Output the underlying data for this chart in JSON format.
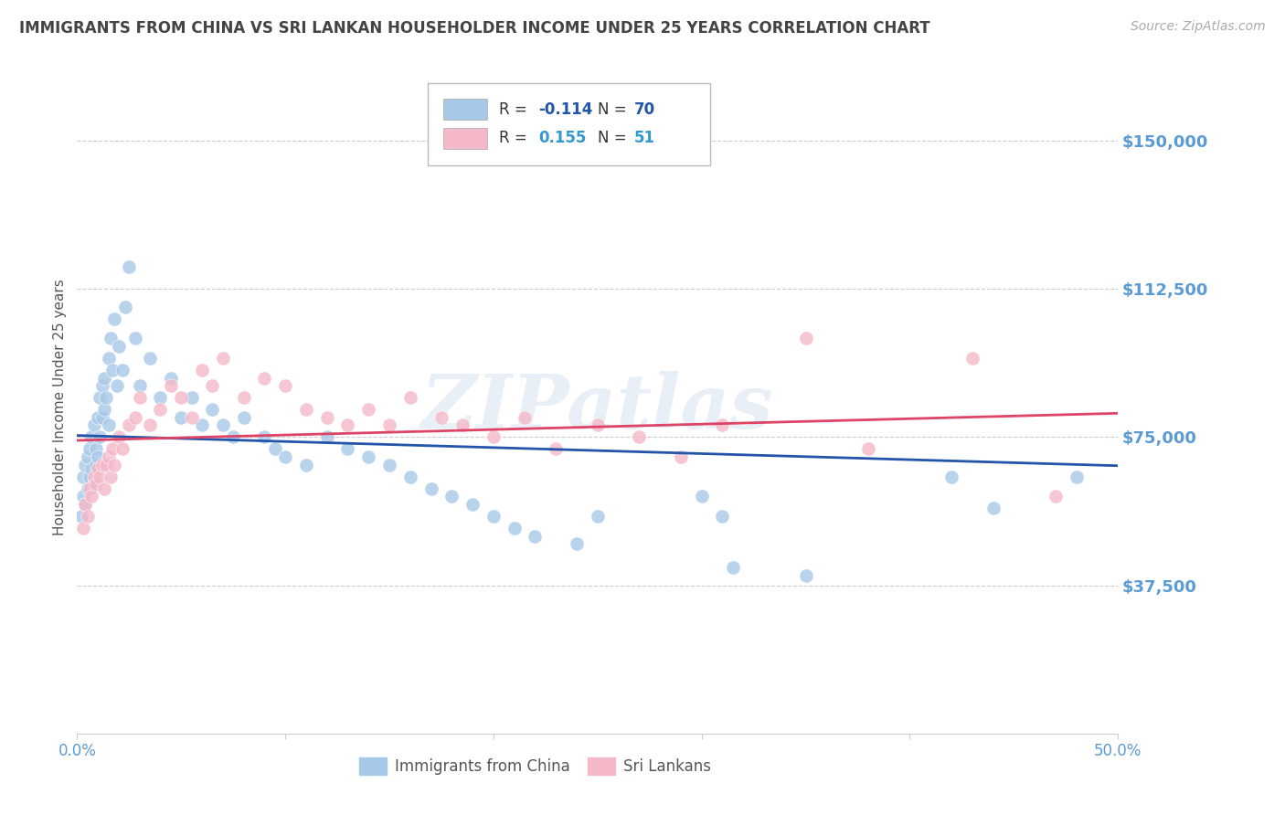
{
  "title": "IMMIGRANTS FROM CHINA VS SRI LANKAN HOUSEHOLDER INCOME UNDER 25 YEARS CORRELATION CHART",
  "source": "Source: ZipAtlas.com",
  "ylabel": "Householder Income Under 25 years",
  "xlim": [
    0.0,
    0.5
  ],
  "ylim": [
    0,
    165000
  ],
  "yticks": [
    37500,
    75000,
    112500,
    150000
  ],
  "ytick_labels": [
    "$37,500",
    "$75,000",
    "$112,500",
    "$150,000"
  ],
  "xticks": [
    0.0,
    0.1,
    0.2,
    0.3,
    0.4,
    0.5
  ],
  "xtick_labels": [
    "0.0%",
    "",
    "",
    "",
    "",
    "50.0%"
  ],
  "china_color": "#a8c8e8",
  "srilanka_color": "#f4b8c8",
  "china_line_color": "#2255aa",
  "srilanka_line_color": "#dd4466",
  "china_R": -0.114,
  "china_N": 70,
  "srilanka_R": 0.155,
  "srilanka_N": 51,
  "background_color": "#ffffff",
  "grid_color": "#cccccc",
  "title_color": "#444444",
  "tick_label_color": "#5b9bd5",
  "china_x": [
    0.002,
    0.003,
    0.003,
    0.004,
    0.004,
    0.005,
    0.005,
    0.006,
    0.006,
    0.007,
    0.007,
    0.008,
    0.008,
    0.009,
    0.009,
    0.01,
    0.01,
    0.011,
    0.011,
    0.012,
    0.012,
    0.013,
    0.013,
    0.014,
    0.015,
    0.015,
    0.016,
    0.017,
    0.018,
    0.019,
    0.02,
    0.022,
    0.023,
    0.025,
    0.028,
    0.03,
    0.035,
    0.04,
    0.045,
    0.05,
    0.055,
    0.06,
    0.065,
    0.07,
    0.075,
    0.08,
    0.09,
    0.095,
    0.1,
    0.11,
    0.12,
    0.13,
    0.14,
    0.15,
    0.16,
    0.17,
    0.18,
    0.19,
    0.2,
    0.21,
    0.22,
    0.24,
    0.25,
    0.3,
    0.31,
    0.315,
    0.35,
    0.42,
    0.44,
    0.48
  ],
  "china_y": [
    55000,
    60000,
    65000,
    58000,
    68000,
    62000,
    70000,
    65000,
    72000,
    67000,
    75000,
    63000,
    78000,
    68000,
    72000,
    80000,
    70000,
    85000,
    75000,
    80000,
    88000,
    82000,
    90000,
    85000,
    95000,
    78000,
    100000,
    92000,
    105000,
    88000,
    98000,
    92000,
    108000,
    118000,
    100000,
    88000,
    95000,
    85000,
    90000,
    80000,
    85000,
    78000,
    82000,
    78000,
    75000,
    80000,
    75000,
    72000,
    70000,
    68000,
    75000,
    72000,
    70000,
    68000,
    65000,
    62000,
    60000,
    58000,
    55000,
    52000,
    50000,
    48000,
    55000,
    60000,
    55000,
    42000,
    40000,
    65000,
    57000,
    65000
  ],
  "srilanka_x": [
    0.003,
    0.004,
    0.005,
    0.006,
    0.007,
    0.008,
    0.009,
    0.01,
    0.011,
    0.012,
    0.013,
    0.014,
    0.015,
    0.016,
    0.017,
    0.018,
    0.02,
    0.022,
    0.025,
    0.028,
    0.03,
    0.035,
    0.04,
    0.045,
    0.05,
    0.055,
    0.06,
    0.065,
    0.07,
    0.08,
    0.09,
    0.1,
    0.11,
    0.12,
    0.13,
    0.14,
    0.15,
    0.16,
    0.175,
    0.185,
    0.2,
    0.215,
    0.23,
    0.25,
    0.27,
    0.29,
    0.31,
    0.35,
    0.38,
    0.43,
    0.47
  ],
  "srilanka_y": [
    52000,
    58000,
    55000,
    62000,
    60000,
    65000,
    63000,
    67000,
    65000,
    68000,
    62000,
    68000,
    70000,
    65000,
    72000,
    68000,
    75000,
    72000,
    78000,
    80000,
    85000,
    78000,
    82000,
    88000,
    85000,
    80000,
    92000,
    88000,
    95000,
    85000,
    90000,
    88000,
    82000,
    80000,
    78000,
    82000,
    78000,
    85000,
    80000,
    78000,
    75000,
    80000,
    72000,
    78000,
    75000,
    70000,
    78000,
    100000,
    72000,
    95000,
    60000
  ],
  "watermark_text": "ZIPatlas"
}
